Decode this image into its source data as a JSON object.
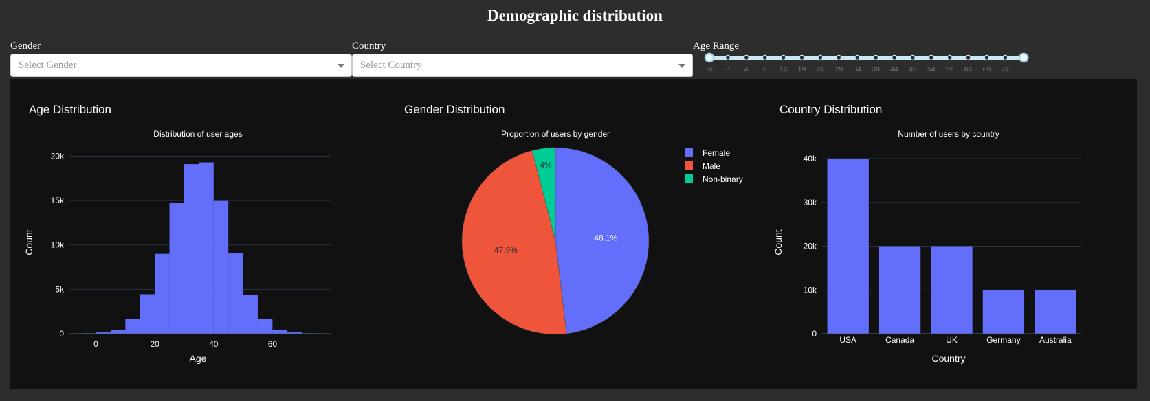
{
  "page": {
    "title": "Demographic distribution"
  },
  "filters": {
    "gender": {
      "label": "Gender",
      "placeholder": "Select Gender"
    },
    "country": {
      "label": "Country",
      "placeholder": "Select Country"
    },
    "age": {
      "label": "Age Range",
      "marks": [
        "-6",
        "-1",
        "4",
        "9",
        "14",
        "19",
        "24",
        "29",
        "34",
        "39",
        "44",
        "49",
        "54",
        "59",
        "64",
        "69",
        "74"
      ],
      "selected_min": "-6",
      "selected_max": "79"
    }
  },
  "colors": {
    "primary": "#636efa",
    "red": "#ef553b",
    "green": "#00cc96",
    "panel": "#111111",
    "slider": "#c8eaf5"
  },
  "charts": {
    "age": {
      "heading": "Age Distribution"
    },
    "gender": {
      "heading": "Gender Distribution"
    },
    "country": {
      "heading": "Country Distribution"
    }
  },
  "chart_data": [
    {
      "type": "bar",
      "subtype": "histogram",
      "title": "Distribution of user ages",
      "xlabel": "Age",
      "ylabel": "Count",
      "bin_width": 5,
      "bins_start": [
        -5,
        0,
        5,
        10,
        15,
        20,
        25,
        30,
        35,
        40,
        45,
        50,
        55,
        60,
        65,
        70,
        75
      ],
      "values": [
        50,
        150,
        400,
        1650,
        4450,
        9000,
        14750,
        19100,
        19300,
        14950,
        9100,
        4400,
        1650,
        400,
        150,
        50,
        20
      ],
      "xlim": [
        -9,
        80
      ],
      "ylim": [
        0,
        20500
      ],
      "xticks": [
        "0",
        "20",
        "40",
        "60"
      ],
      "yticks": [
        "0",
        "5k",
        "10k",
        "15k",
        "20k"
      ],
      "grid": true
    },
    {
      "type": "pie",
      "title": "Proportion of users by gender",
      "labels": [
        "Female",
        "Male",
        "Non-binary"
      ],
      "values": [
        48.1,
        47.9,
        4
      ],
      "text": [
        "48.1%",
        "47.9%",
        "4%"
      ],
      "legend_position": "top-right"
    },
    {
      "type": "bar",
      "title": "Number of users by country",
      "xlabel": "Country",
      "ylabel": "Count",
      "categories": [
        "USA",
        "Canada",
        "UK",
        "Germany",
        "Australia"
      ],
      "values": [
        40000,
        20000,
        20000,
        10000,
        10000
      ],
      "ylim": [
        0,
        40000
      ],
      "yticks": [
        "0",
        "10k",
        "20k",
        "30k",
        "40k"
      ],
      "grid": true
    }
  ]
}
